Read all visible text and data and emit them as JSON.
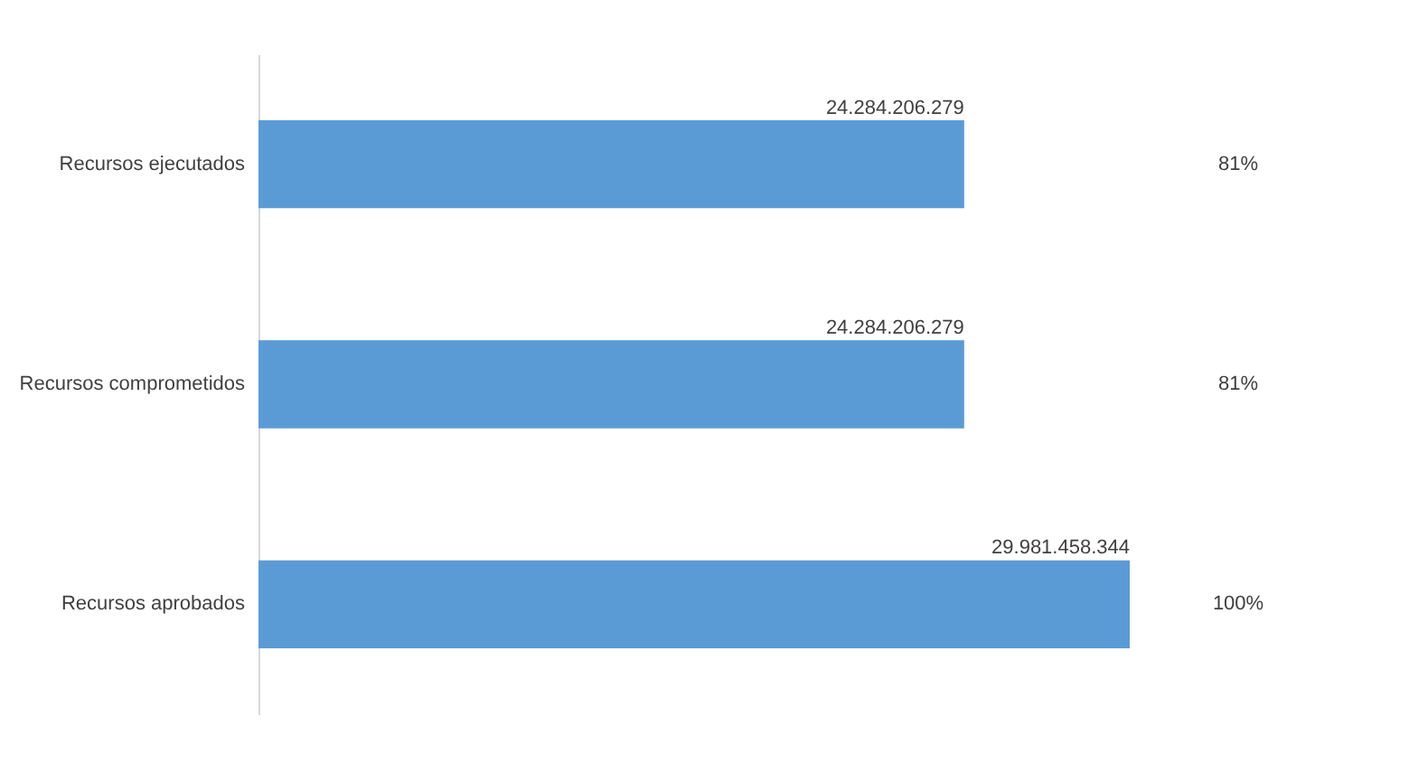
{
  "chart_data": {
    "type": "bar",
    "orientation": "horizontal",
    "categories": [
      "Recursos ejecutados",
      "Recursos comprometidos",
      "Recursos aprobados"
    ],
    "values": [
      24284206279,
      24284206279,
      29981458344
    ],
    "value_labels": [
      "24.284.206.279",
      "24.284.206.279",
      "29.981.458.344"
    ],
    "color": "#5b9bd5",
    "annotations": [
      "81%",
      "81%",
      "100%"
    ]
  }
}
